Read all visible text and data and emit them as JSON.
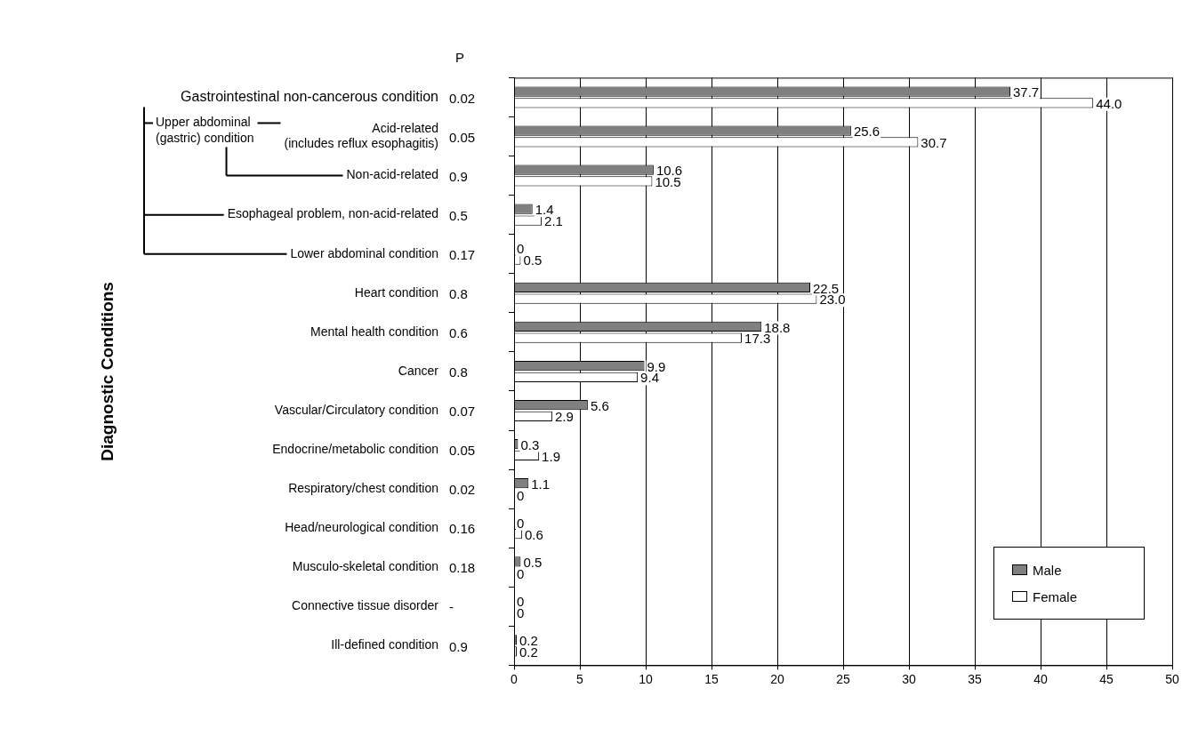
{
  "chart_data": {
    "type": "bar",
    "orientation": "horizontal",
    "ylabel": "Diagnostic Conditions",
    "categories": [
      "Gastrointestinal non-cancerous condition",
      "Acid-related\n(includes reflux esophagitis)",
      "Non-acid-related",
      "Esophageal problem, non-acid-related",
      "Lower abdominal condition",
      "Heart condition",
      "Mental health condition",
      "Cancer",
      "Vascular/Circulatory condition",
      "Endocrine/metabolic condition",
      "Respiratory/chest condition",
      "Head/neurological condition",
      "Musculo-skeletal condition",
      "Connective tissue disorder",
      "Ill-defined condition"
    ],
    "series": [
      {
        "name": "Male",
        "color": "#808080",
        "values": [
          37.7,
          25.6,
          10.6,
          1.4,
          0,
          22.5,
          18.8,
          9.9,
          5.6,
          0.3,
          1.1,
          0,
          0.5,
          0,
          0.2
        ],
        "value_labels": [
          "37.7",
          "25.6",
          "10.6",
          "1.4",
          "0",
          "22.5",
          "18.8",
          "9.9",
          "5.6",
          "0.3",
          "1.1",
          "0",
          "0.5",
          "0",
          "0.2"
        ]
      },
      {
        "name": "Female",
        "color": "#ffffff",
        "values": [
          44.0,
          30.7,
          10.5,
          2.1,
          0.5,
          23.0,
          17.3,
          9.4,
          2.9,
          1.9,
          0,
          0.6,
          0,
          0,
          0.2
        ],
        "value_labels": [
          "44.0",
          "30.7",
          "10.5",
          "2.1",
          "0.5",
          "23.0",
          "17.3",
          "9.4",
          "2.9",
          "1.9",
          "0",
          "0.6",
          "0",
          "0",
          "0.2"
        ]
      }
    ],
    "xlim": [
      0,
      50
    ],
    "xticks": [
      0,
      5,
      10,
      15,
      20,
      25,
      30,
      35,
      40,
      45,
      50
    ],
    "grid": "x",
    "legend": "bottom right",
    "annotations": [
      "P",
      "Upper abdominal\n(gastric) condition",
      "0.02",
      "0.05",
      "0.9",
      "0.5",
      "0.17",
      "0.8",
      "0.6",
      "0.8",
      "0.07",
      "0.05",
      "0.02",
      "0.16",
      "0.18",
      "-",
      "0.9"
    ]
  }
}
